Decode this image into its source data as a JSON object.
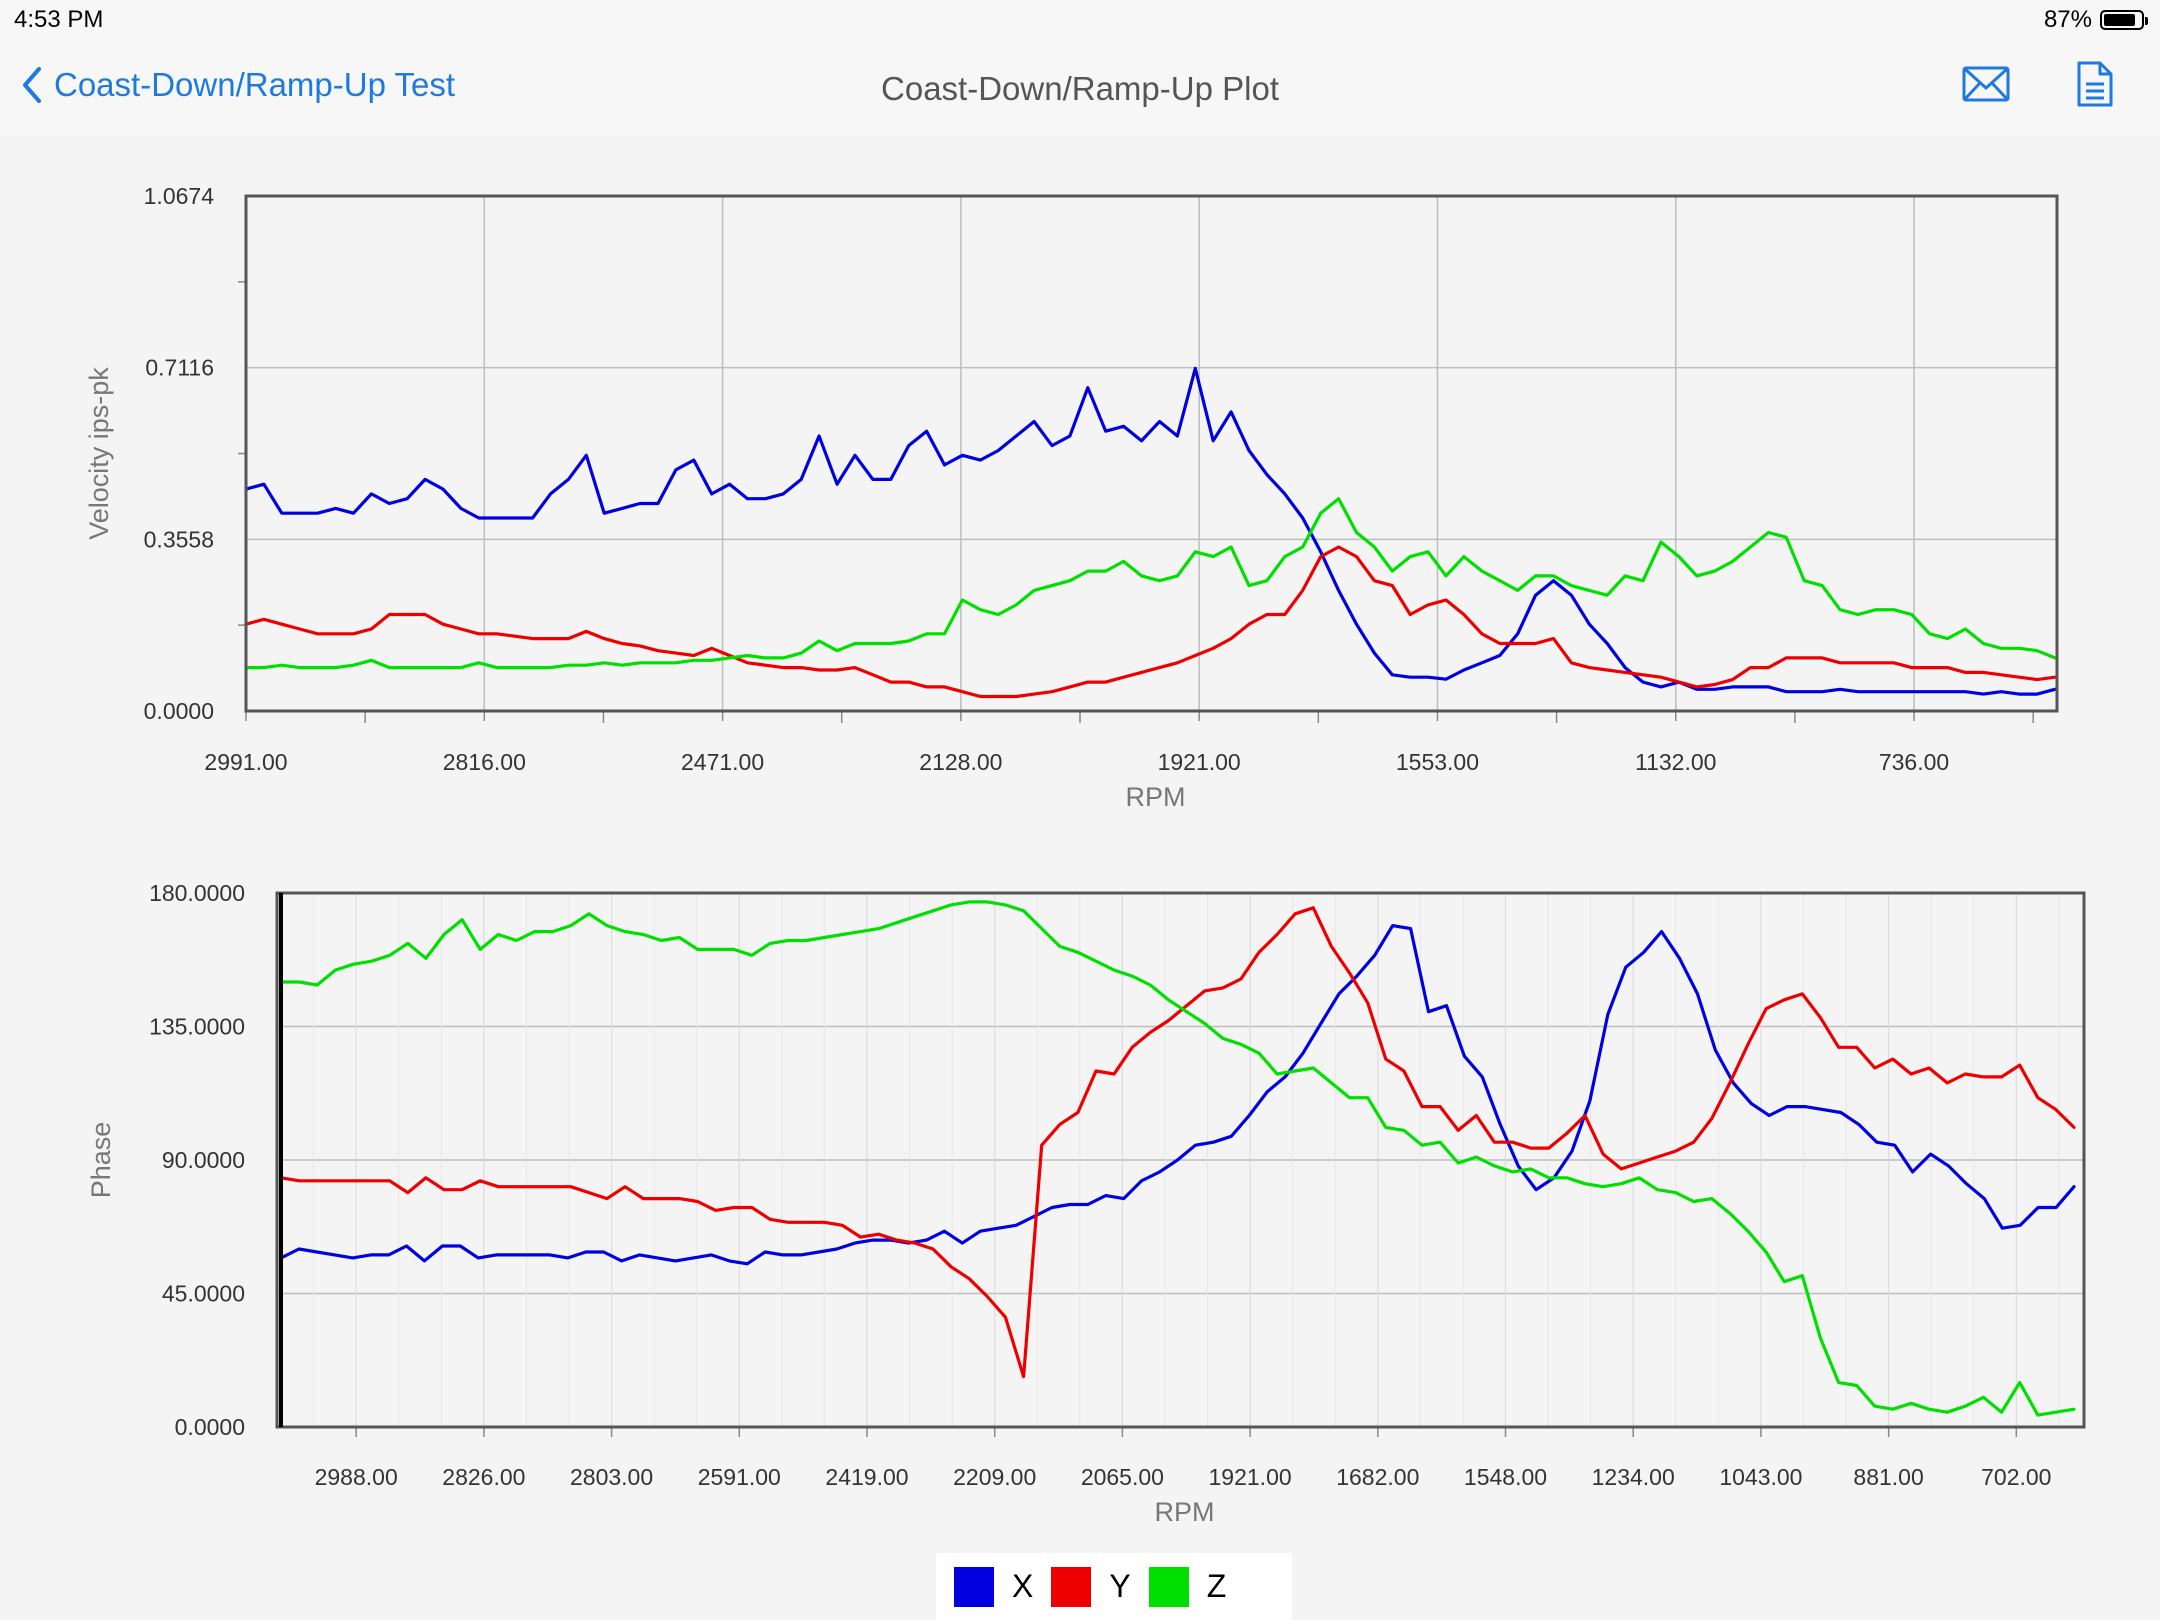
{
  "status_bar": {
    "time": "4:53 PM",
    "battery": "87%",
    "battery_level": 0.87
  },
  "nav": {
    "back_label": "Coast-Down/Ramp-Up Test",
    "title": "Coast-Down/Ramp-Up Plot",
    "mail_icon": "mail-icon",
    "document_icon": "document-icon"
  },
  "legend": [
    {
      "label": "X",
      "color": "#0000e0"
    },
    {
      "label": "Y",
      "color": "#ee0000"
    },
    {
      "label": "Z",
      "color": "#00e000"
    }
  ],
  "chart_data": [
    {
      "type": "line",
      "title": "",
      "xlabel": "RPM",
      "ylabel": "Velocity ips-pk",
      "ylim": [
        0,
        1.0674
      ],
      "y_ticks": [
        "0.0000",
        "0.3558",
        "0.7116",
        "1.0674"
      ],
      "x_ticks": [
        "2991.00",
        "2816.00",
        "2471.00",
        "2128.00",
        "1921.00",
        "1553.00",
        "1132.00",
        "736.00"
      ],
      "grid": true,
      "series": [
        {
          "name": "X",
          "color": "#0000e0",
          "values": [
            0.46,
            0.47,
            0.41,
            0.41,
            0.41,
            0.42,
            0.41,
            0.45,
            0.43,
            0.44,
            0.48,
            0.46,
            0.42,
            0.4,
            0.4,
            0.4,
            0.4,
            0.45,
            0.48,
            0.53,
            0.41,
            0.42,
            0.43,
            0.43,
            0.5,
            0.52,
            0.45,
            0.47,
            0.44,
            0.44,
            0.45,
            0.48,
            0.57,
            0.47,
            0.53,
            0.48,
            0.48,
            0.55,
            0.58,
            0.51,
            0.53,
            0.52,
            0.54,
            0.57,
            0.6,
            0.55,
            0.57,
            0.67,
            0.58,
            0.59,
            0.56,
            0.6,
            0.57,
            0.71,
            0.56,
            0.62,
            0.54,
            0.49,
            0.45,
            0.4,
            0.33,
            0.25,
            0.18,
            0.12,
            0.075,
            0.07,
            0.07,
            0.066,
            0.085,
            0.1,
            0.115,
            0.16,
            0.24,
            0.27,
            0.24,
            0.18,
            0.14,
            0.09,
            0.06,
            0.05,
            0.06,
            0.045,
            0.045,
            0.05,
            0.05,
            0.05,
            0.04,
            0.04,
            0.04,
            0.045,
            0.04,
            0.04,
            0.04,
            0.04,
            0.04,
            0.04,
            0.04,
            0.035,
            0.04,
            0.035,
            0.035,
            0.045
          ]
        },
        {
          "name": "Y",
          "color": "#ee0000",
          "values": [
            0.18,
            0.19,
            0.18,
            0.17,
            0.16,
            0.16,
            0.16,
            0.17,
            0.2,
            0.2,
            0.2,
            0.18,
            0.17,
            0.16,
            0.16,
            0.155,
            0.15,
            0.15,
            0.15,
            0.165,
            0.15,
            0.14,
            0.135,
            0.125,
            0.12,
            0.115,
            0.13,
            0.115,
            0.1,
            0.095,
            0.09,
            0.09,
            0.085,
            0.085,
            0.09,
            0.075,
            0.06,
            0.06,
            0.05,
            0.05,
            0.04,
            0.03,
            0.03,
            0.03,
            0.035,
            0.04,
            0.05,
            0.06,
            0.06,
            0.07,
            0.08,
            0.09,
            0.1,
            0.115,
            0.13,
            0.15,
            0.18,
            0.2,
            0.2,
            0.25,
            0.32,
            0.34,
            0.32,
            0.27,
            0.26,
            0.2,
            0.22,
            0.23,
            0.2,
            0.16,
            0.14,
            0.14,
            0.14,
            0.15,
            0.1,
            0.09,
            0.085,
            0.08,
            0.075,
            0.07,
            0.06,
            0.05,
            0.055,
            0.065,
            0.09,
            0.09,
            0.11,
            0.11,
            0.11,
            0.1,
            0.1,
            0.1,
            0.1,
            0.09,
            0.09,
            0.09,
            0.08,
            0.08,
            0.075,
            0.07,
            0.065,
            0.07
          ]
        },
        {
          "name": "Z",
          "color": "#00e000",
          "values": [
            0.09,
            0.09,
            0.095,
            0.09,
            0.09,
            0.09,
            0.095,
            0.105,
            0.09,
            0.09,
            0.09,
            0.09,
            0.09,
            0.1,
            0.09,
            0.09,
            0.09,
            0.09,
            0.095,
            0.095,
            0.1,
            0.095,
            0.1,
            0.1,
            0.1,
            0.105,
            0.105,
            0.11,
            0.115,
            0.11,
            0.11,
            0.12,
            0.145,
            0.125,
            0.14,
            0.14,
            0.14,
            0.145,
            0.16,
            0.16,
            0.23,
            0.21,
            0.2,
            0.22,
            0.25,
            0.26,
            0.27,
            0.29,
            0.29,
            0.31,
            0.28,
            0.27,
            0.28,
            0.33,
            0.32,
            0.34,
            0.26,
            0.27,
            0.32,
            0.34,
            0.41,
            0.44,
            0.37,
            0.34,
            0.29,
            0.32,
            0.33,
            0.28,
            0.32,
            0.29,
            0.27,
            0.25,
            0.28,
            0.28,
            0.26,
            0.25,
            0.24,
            0.28,
            0.27,
            0.35,
            0.32,
            0.28,
            0.29,
            0.31,
            0.34,
            0.37,
            0.36,
            0.27,
            0.26,
            0.21,
            0.2,
            0.21,
            0.21,
            0.2,
            0.16,
            0.15,
            0.17,
            0.14,
            0.13,
            0.13,
            0.125,
            0.11
          ]
        }
      ]
    },
    {
      "type": "line",
      "title": "",
      "xlabel": "RPM",
      "ylabel": "Phase",
      "ylim": [
        0,
        180
      ],
      "y_ticks": [
        "0.0000",
        "45.0000",
        "90.0000",
        "135.0000",
        "180.0000"
      ],
      "x_ticks": [
        "2988.00",
        "2826.00",
        "2803.00",
        "2591.00",
        "2419.00",
        "2209.00",
        "2065.00",
        "1921.00",
        "1682.00",
        "1548.00",
        "1234.00",
        "1043.00",
        "881.00",
        "702.00"
      ],
      "grid": true,
      "series": [
        {
          "name": "X",
          "color": "#0000e0",
          "values": [
            57,
            60,
            59,
            58,
            57,
            58,
            58,
            61,
            56,
            61,
            61,
            57,
            58,
            58,
            58,
            58,
            57,
            59,
            59,
            56,
            58,
            57,
            56,
            57,
            58,
            56,
            55,
            59,
            58,
            58,
            59,
            60,
            62,
            63,
            63,
            62,
            63,
            66,
            62,
            66,
            67,
            68,
            71,
            74,
            75,
            75,
            78,
            77,
            83,
            86,
            90,
            95,
            96,
            98,
            105,
            113,
            118,
            126,
            136,
            146,
            152,
            159,
            169,
            168,
            140,
            142,
            125,
            118,
            102,
            88,
            80,
            84,
            93,
            110,
            139,
            155,
            160,
            167,
            158,
            146,
            127,
            116,
            109,
            105,
            108,
            108,
            107,
            106,
            102,
            96,
            95,
            86,
            92,
            88,
            82,
            77,
            67,
            68,
            74,
            74,
            81
          ]
        },
        {
          "name": "Y",
          "color": "#ee0000",
          "values": [
            84,
            83,
            83,
            83,
            83,
            83,
            83,
            79,
            84,
            80,
            80,
            83,
            81,
            81,
            81,
            81,
            81,
            79,
            77,
            81,
            77,
            77,
            77,
            76,
            73,
            74,
            74,
            70,
            69,
            69,
            69,
            68,
            64,
            65,
            63,
            62,
            60,
            54,
            50,
            44,
            37,
            17,
            95,
            102,
            106,
            120,
            119,
            128,
            133,
            137,
            142,
            147,
            148,
            151,
            160,
            166,
            173,
            175,
            162,
            153,
            143,
            124,
            120,
            108,
            108,
            100,
            105,
            96,
            96,
            94,
            94,
            99,
            105,
            92,
            87,
            89,
            91,
            93,
            96,
            104,
            116,
            129,
            141,
            144,
            146,
            138,
            128,
            128,
            121,
            124,
            119,
            121,
            116,
            119,
            118,
            118,
            122,
            111,
            107,
            101
          ]
        },
        {
          "name": "Z",
          "color": "#00e000",
          "values": [
            150,
            150,
            149,
            154,
            156,
            157,
            159,
            163,
            158,
            166,
            171,
            161,
            166,
            164,
            167,
            167,
            169,
            173,
            169,
            167,
            166,
            164,
            165,
            161,
            161,
            161,
            159,
            163,
            164,
            164,
            165,
            166,
            167,
            168,
            170,
            172,
            174,
            176,
            177,
            177,
            176,
            174,
            168,
            162,
            160,
            157,
            154,
            152,
            149,
            144,
            140,
            136,
            131,
            129,
            126,
            119,
            120,
            121,
            116,
            111,
            111,
            101,
            100,
            95,
            96,
            89,
            91,
            88,
            86,
            87,
            84,
            84,
            82,
            81,
            82,
            84,
            80,
            79,
            76,
            77,
            72,
            66,
            59,
            49,
            51,
            30,
            15,
            14,
            7,
            6,
            8,
            6,
            5,
            7,
            10,
            5,
            15,
            4,
            5,
            6
          ]
        }
      ]
    }
  ]
}
